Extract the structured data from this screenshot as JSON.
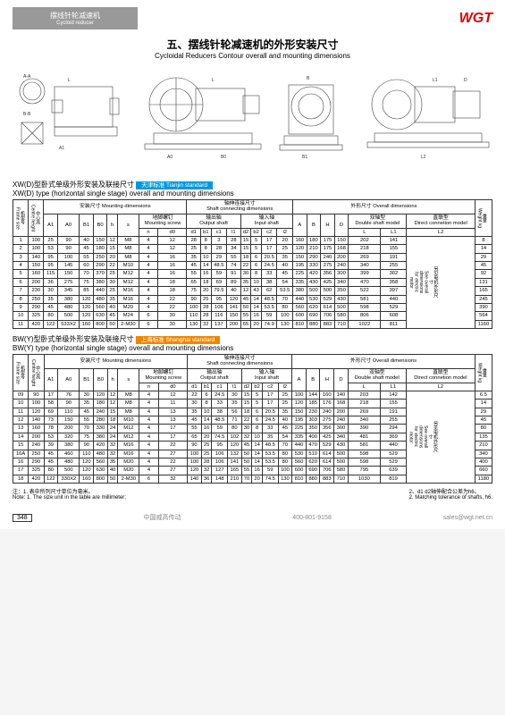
{
  "brand": "WGT",
  "greybar_cn": "摆线针轮减速机",
  "greybar_en": "Cycloid reducer",
  "title_cn": "五、摆线针轮减速机的外形安装尺寸",
  "title_en": "Cycloidal Reducers Contour overall and mounting dimensions",
  "sect1_cn": "XW(D)型卧式单级外形安装及联接尺寸",
  "sect1_en": "XW(D) type (horizontal single stage) overall and mounting dimensions",
  "tag1_text": "天津标准 Tianjin standard",
  "tag1_bg": "#0099dd",
  "sect2_cn": "BW(Y)型卧式单级外形安装及联接尺寸",
  "sect2_en": "BW(Y) type (horizontal single stage) overall and mounting dimensions",
  "tag2_text": "上海标准 Shanghai standard",
  "tag2_bg": "#ee8800",
  "group_labels": {
    "mount": "安装尺寸  Mounting dimensions",
    "shaft": "轴伸连接尺寸\nShaft connecting dimensions",
    "out": "输出轴\nOutput shaft",
    "in": "输入轴\nInput shaft",
    "overall": "外形尺寸  Overall dimensions",
    "dbl": "双轴型\nDouble shaft model",
    "dir": "直联型\nDirect connetion model",
    "screw": "地脚螺钉\nMounting screw",
    "frame": "机型号\nFrame size",
    "centre": "中心高\nCentre height",
    "weight": "重量\nWeight kg",
    "note_right": "另见电机外形尺寸\nSee overall dimensions\nfor electric motor"
  },
  "cols": [
    "A1",
    "A0",
    "B1",
    "B0",
    "h",
    "s",
    "n",
    "d0",
    "d1",
    "b1",
    "c1",
    "l1",
    "d2",
    "b2",
    "c2",
    "l2",
    "A",
    "B",
    "H",
    "D",
    "L",
    "L1",
    "L2"
  ],
  "xw_rows": [
    [
      "1",
      "100",
      "25",
      "90",
      "40",
      "150",
      "12",
      "M8",
      "4",
      "12",
      "28",
      "8",
      "3",
      "28",
      "15",
      "5",
      "17",
      "20",
      "160",
      "180",
      "175",
      "150",
      "202",
      "141",
      "",
      "8"
    ],
    [
      "2",
      "100",
      "53",
      "90",
      "45",
      "180",
      "15",
      "M8",
      "4",
      "12",
      "25",
      "8",
      "28",
      "34",
      "15",
      "5",
      "17",
      "25",
      "120",
      "210",
      "175",
      "168",
      "218",
      "155",
      "",
      "14"
    ],
    [
      "3",
      "140",
      "95",
      "100",
      "55",
      "250",
      "20",
      "M8",
      "4",
      "16",
      "35",
      "10",
      "29",
      "55",
      "18",
      "6",
      "20.5",
      "35",
      "150",
      "290",
      "240",
      "200",
      "269",
      "191",
      "",
      "29"
    ],
    [
      "4",
      "150",
      "95",
      "145",
      "60",
      "290",
      "22",
      "M10",
      "4",
      "16",
      "45",
      "14",
      "48.5",
      "74",
      "22",
      "6",
      "24.5",
      "40",
      "195",
      "330",
      "275",
      "240",
      "340",
      "255",
      "",
      "45"
    ],
    [
      "5",
      "160",
      "115",
      "150",
      "70",
      "370",
      "25",
      "M12",
      "4",
      "16",
      "55",
      "16",
      "59",
      "91",
      "30",
      "8",
      "33",
      "45",
      "225",
      "420",
      "356",
      "300",
      "399",
      "302",
      "",
      "92"
    ],
    [
      "6",
      "200",
      "36",
      "275",
      "75",
      "380",
      "30",
      "M12",
      "4",
      "18",
      "65",
      "18",
      "69",
      "89",
      "35",
      "10",
      "38",
      "54",
      "335",
      "430",
      "425",
      "340",
      "470",
      "358",
      "",
      "131"
    ],
    [
      "7",
      "230",
      "30",
      "345",
      "85",
      "440",
      "25",
      "M16",
      "4",
      "18",
      "75",
      "20",
      "79.5",
      "40",
      "12",
      "43",
      "62",
      "53.5",
      "380",
      "500",
      "500",
      "350",
      "522",
      "397",
      "",
      "165"
    ],
    [
      "8",
      "250",
      "35",
      "380",
      "120",
      "480",
      "35",
      "M16",
      "4",
      "22",
      "90",
      "25",
      "95",
      "120",
      "45",
      "14",
      "48.5",
      "70",
      "440",
      "530",
      "529",
      "430",
      "581",
      "440",
      "",
      "245"
    ],
    [
      "9",
      "290",
      "45",
      "480",
      "120",
      "560",
      "40",
      "M20",
      "4",
      "22",
      "100",
      "28",
      "106",
      "141",
      "50",
      "14",
      "53.5",
      "80",
      "560",
      "620",
      "614",
      "500",
      "598",
      "529",
      "",
      "390"
    ],
    [
      "10",
      "325",
      "80",
      "500",
      "120",
      "630",
      "45",
      "M24",
      "6",
      "30",
      "110",
      "28",
      "116",
      "150",
      "55",
      "16",
      "59",
      "100",
      "600",
      "690",
      "706",
      "580",
      "806",
      "608",
      "",
      "564"
    ],
    [
      "11",
      "420",
      "122",
      "533X2",
      "160",
      "800",
      "50",
      "2-M30",
      "6",
      "30",
      "130",
      "32",
      "137",
      "200",
      "65",
      "20",
      "74.9",
      "130",
      "810",
      "880",
      "883",
      "710",
      "1022",
      "811",
      "",
      "1160"
    ]
  ],
  "bw_rows": [
    [
      "09",
      "90",
      "17",
      "76",
      "30",
      "120",
      "12",
      "M8",
      "4",
      "12",
      "22",
      "6",
      "24.5",
      "30",
      "15",
      "5",
      "17",
      "25",
      "100",
      "144",
      "160",
      "140",
      "203",
      "142",
      "",
      "6.5"
    ],
    [
      "10",
      "100",
      "58",
      "90",
      "35",
      "180",
      "12",
      "M8",
      "4",
      "11",
      "30",
      "8",
      "33",
      "35",
      "15",
      "5",
      "17",
      "25",
      "120",
      "185",
      "176",
      "168",
      "218",
      "155",
      "",
      "14"
    ],
    [
      "11",
      "120",
      "69",
      "110",
      "45",
      "240",
      "15",
      "M8",
      "4",
      "13",
      "35",
      "10",
      "38",
      "56",
      "18",
      "6",
      "20.5",
      "35",
      "150",
      "230",
      "240",
      "200",
      "269",
      "191",
      "",
      "29"
    ],
    [
      "12",
      "140",
      "73",
      "150",
      "55",
      "280",
      "18",
      "M10",
      "4",
      "13",
      "45",
      "14",
      "48.5",
      "71",
      "22",
      "6",
      "24.5",
      "40",
      "195",
      "303",
      "275",
      "240",
      "340",
      "255",
      "",
      "45"
    ],
    [
      "13",
      "160",
      "78",
      "200",
      "70",
      "330",
      "24",
      "M12",
      "4",
      "17",
      "55",
      "16",
      "59",
      "80",
      "30",
      "8",
      "33",
      "45",
      "225",
      "350",
      "356",
      "300",
      "390",
      "294",
      "",
      "80"
    ],
    [
      "14",
      "200",
      "53",
      "320",
      "75",
      "380",
      "24",
      "M12",
      "4",
      "17",
      "65",
      "20",
      "74.5",
      "102",
      "32",
      "10",
      "35",
      "54",
      "335",
      "400",
      "425",
      "340",
      "481",
      "369",
      "",
      "135"
    ],
    [
      "15",
      "240",
      "39",
      "380",
      "90",
      "420",
      "32",
      "M16",
      "4",
      "22",
      "90",
      "25",
      "95",
      "120",
      "45",
      "14",
      "48.5",
      "70",
      "440",
      "470",
      "529",
      "430",
      "581",
      "440",
      "",
      "210"
    ],
    [
      "16A",
      "250",
      "45",
      "460",
      "110",
      "480",
      "32",
      "M16",
      "4",
      "27",
      "100",
      "25",
      "106",
      "132",
      "50",
      "14",
      "53.5",
      "80",
      "530",
      "510",
      "614",
      "500",
      "598",
      "529",
      "",
      "340"
    ],
    [
      "16",
      "290",
      "45",
      "480",
      "120",
      "560",
      "35",
      "M20",
      "4",
      "22",
      "100",
      "28",
      "106",
      "141",
      "50",
      "14",
      "53.5",
      "80",
      "560",
      "620",
      "614",
      "500",
      "598",
      "529",
      "",
      "400"
    ],
    [
      "17",
      "325",
      "80",
      "500",
      "120",
      "630",
      "40",
      "M20",
      "4",
      "27",
      "120",
      "32",
      "127",
      "165",
      "55",
      "16",
      "59",
      "100",
      "600",
      "690",
      "706",
      "580",
      "795",
      "639",
      "",
      "660"
    ],
    [
      "18",
      "420",
      "122",
      "330X2",
      "160",
      "800",
      "50",
      "2-M30",
      "6",
      "32",
      "140",
      "36",
      "148",
      "210",
      "70",
      "20",
      "74.5",
      "130",
      "810",
      "880",
      "883",
      "710",
      "1030",
      "819",
      "",
      "1180"
    ]
  ],
  "notes": {
    "n1_cn": "注：1. 表中所列尺寸单位为毫米。",
    "n1_en": "Note: 1. The size unit in the table are millimeter;",
    "n2_cn": "2、d1 d2轴伸配合公差为h6。",
    "n2_en": "2. Matching tolerance of shafts, h6."
  },
  "footer": {
    "page": "348",
    "company": "中国威高传动",
    "tel": "400-801-9158",
    "email": "sales@wgt.net.cn"
  },
  "colors": {
    "line": "#444"
  }
}
